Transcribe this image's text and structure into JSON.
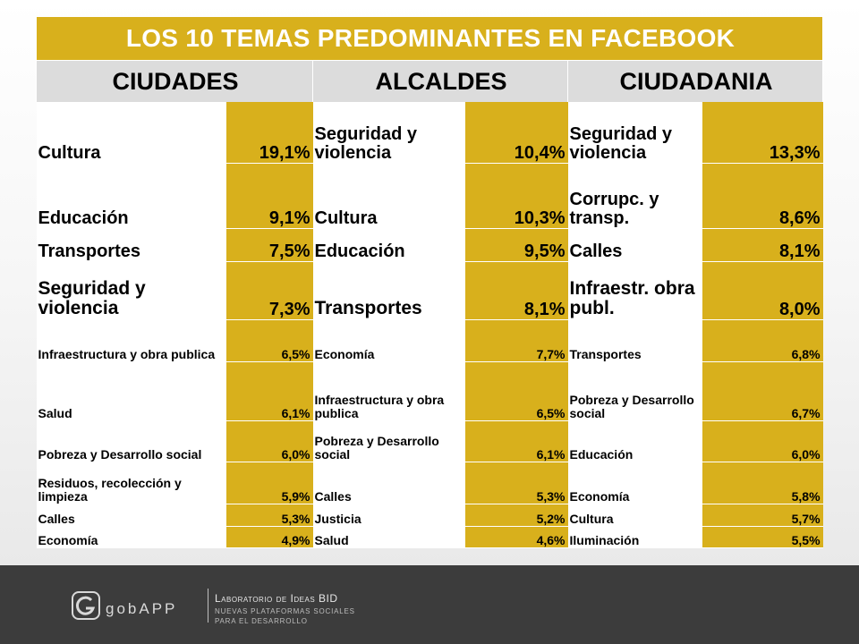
{
  "title": "LOS 10 TEMAS PREDOMINANTES EN FACEBOOK",
  "columns": [
    "CIUDADES",
    "ALCALDES",
    "CIUDADANIA"
  ],
  "rows": [
    [
      [
        "Cultura",
        "19,1%"
      ],
      [
        "Seguridad y violencia",
        "10,4%"
      ],
      [
        "Seguridad y violencia",
        "13,3%"
      ]
    ],
    [
      [
        "Educación",
        "9,1%"
      ],
      [
        "Cultura",
        "10,3%"
      ],
      [
        "Corrupc. y transp.",
        "8,6%"
      ]
    ],
    [
      [
        "Transportes",
        "7,5%"
      ],
      [
        "Educación",
        "9,5%"
      ],
      [
        "Calles",
        "8,1%"
      ]
    ],
    [
      [
        "Seguridad y violencia",
        "7,3%"
      ],
      [
        "Transportes",
        "8,1%"
      ],
      [
        "Infraestr. obra publ.",
        "8,0%"
      ]
    ],
    [
      [
        "Infraestructura y obra publica",
        "6,5%"
      ],
      [
        "Economía",
        "7,7%"
      ],
      [
        "Transportes",
        "6,8%"
      ]
    ],
    [
      [
        "Salud",
        "6,1%"
      ],
      [
        "Infraestructura y obra publica",
        "6,5%"
      ],
      [
        "Pobreza y Desarrollo social",
        "6,7%"
      ]
    ],
    [
      [
        "Pobreza y Desarrollo social",
        "6,0%"
      ],
      [
        "Pobreza y Desarrollo social",
        "6,1%"
      ],
      [
        "Educación",
        "6,0%"
      ]
    ],
    [
      [
        "Residuos, recolección y limpieza",
        "5,9%"
      ],
      [
        "Calles",
        "5,3%"
      ],
      [
        "Economía",
        "5,8%"
      ]
    ],
    [
      [
        "Calles",
        "5,3%"
      ],
      [
        "Justicia",
        "5,2%"
      ],
      [
        "Cultura",
        "5,7%"
      ]
    ],
    [
      [
        "Economía",
        "4,9%"
      ],
      [
        "Salud",
        "4,6%"
      ],
      [
        "Iluminación",
        "5,5%"
      ]
    ]
  ],
  "footer": {
    "logo_text": "gobAPP",
    "lab_title": "Laboratorio de Ideas BID",
    "lab_sub1": "NUEVAS PLATAFORMAS SOCIALES",
    "lab_sub2": "PARA EL DESARROLLO"
  },
  "colors": {
    "accent": "#d8b01c",
    "header_bg": "#dcdcdc",
    "footer_bg": "#3c3c3c"
  }
}
